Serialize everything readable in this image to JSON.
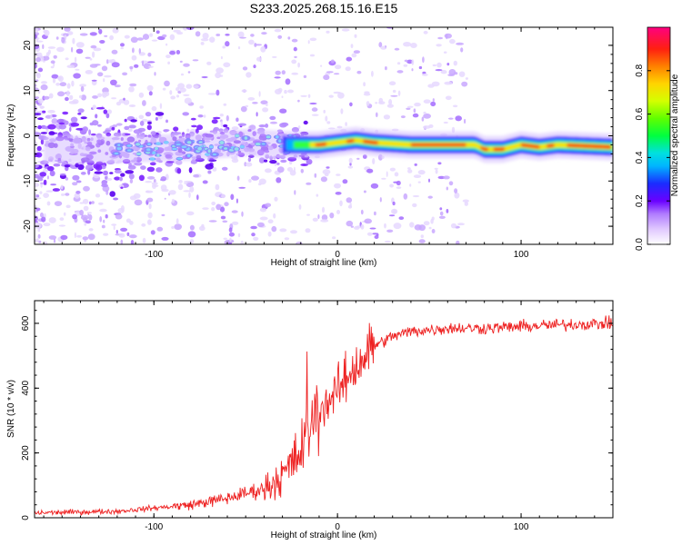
{
  "figure": {
    "title": "S233.2025.268.15.16.E15"
  },
  "chart_data": [
    {
      "type": "heatmap",
      "xlabel": "Height of straight line (km)",
      "ylabel": "Frequency (Hz)",
      "xlim": [
        -165,
        150
      ],
      "ylim": [
        -24,
        24
      ],
      "xticks": [
        -100,
        0,
        100
      ],
      "yticks": [
        -20,
        -10,
        0,
        10,
        20
      ],
      "colorbar": {
        "label": "Normalized spectral amplitude",
        "range": [
          0,
          1
        ],
        "ticks": [
          0.0,
          0.2,
          0.4,
          0.6,
          0.8
        ]
      },
      "ridge": {
        "description_points_x": [
          -165,
          -120,
          -80,
          -50,
          -25,
          -10,
          0,
          10,
          20,
          40,
          60,
          75,
          80,
          90,
          100,
          110,
          120,
          150
        ],
        "description_points_y": [
          -3,
          -3,
          -2.5,
          -1.5,
          -2,
          -2,
          -1.5,
          -1,
          -1.5,
          -2,
          -2,
          -2,
          -3,
          -3,
          -2,
          -2.5,
          -2,
          -2.5
        ]
      }
    },
    {
      "type": "line",
      "xlabel": "Height of straight line (km)",
      "ylabel": "SNR (10 * v/v)",
      "xlim": [
        -165,
        150
      ],
      "ylim": [
        0,
        670
      ],
      "xticks": [
        -100,
        0,
        100
      ],
      "yticks": [
        0,
        200,
        400,
        600
      ],
      "color": "#ee2222",
      "trend": {
        "x": [
          -165,
          -120,
          -80,
          -60,
          -40,
          -30,
          -20,
          -15,
          -10,
          0,
          10,
          20,
          30,
          40,
          60,
          80,
          100,
          120,
          150
        ],
        "y": [
          15,
          20,
          40,
          60,
          90,
          130,
          200,
          280,
          330,
          390,
          470,
          530,
          560,
          575,
          585,
          585,
          590,
          595,
          600
        ]
      }
    }
  ]
}
